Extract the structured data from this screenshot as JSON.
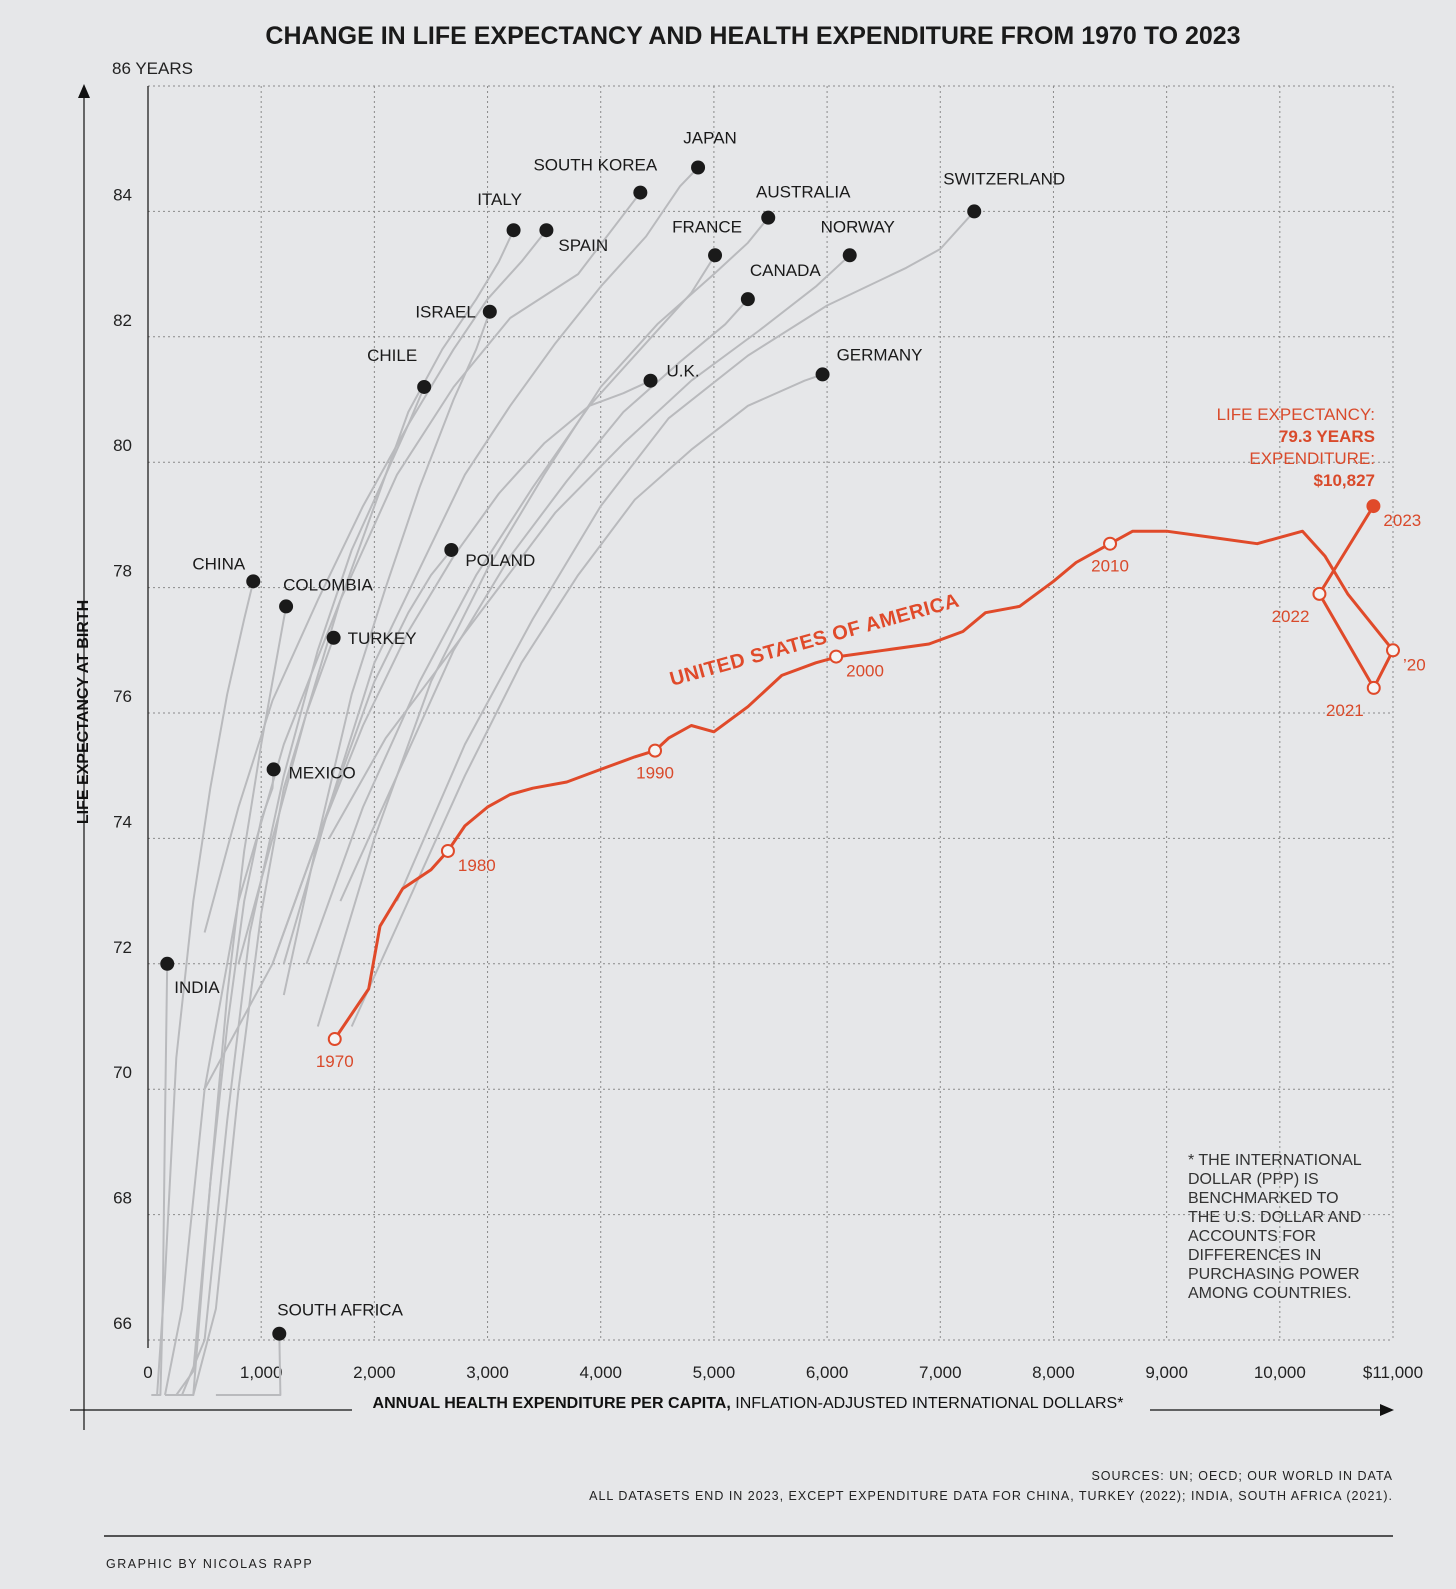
{
  "chart_data": {
    "type": "line",
    "title": "CHANGE IN LIFE EXPECTANCY AND HEALTH EXPENDITURE FROM 1970 TO 2023",
    "xlabel_bold": "ANNUAL HEALTH EXPENDITURE PER CAPITA,",
    "xlabel_rest": " INFLATION-ADJUSTED INTERNATIONAL DOLLARS*",
    "ylabel": "LIFE EXPECTANCY AT BIRTH",
    "xlim": [
      0,
      11000
    ],
    "ylim": [
      66,
      86
    ],
    "grid": true,
    "x_ticks": [
      {
        "value": 0,
        "label": "0"
      },
      {
        "value": 1000,
        "label": "1,000"
      },
      {
        "value": 2000,
        "label": "2,000"
      },
      {
        "value": 3000,
        "label": "3,000"
      },
      {
        "value": 4000,
        "label": "4,000"
      },
      {
        "value": 5000,
        "label": "5,000"
      },
      {
        "value": 6000,
        "label": "6,000"
      },
      {
        "value": 7000,
        "label": "7,000"
      },
      {
        "value": 8000,
        "label": "8,000"
      },
      {
        "value": 9000,
        "label": "9,000"
      },
      {
        "value": 10000,
        "label": "10,000"
      },
      {
        "value": 11000,
        "label": "$11,000"
      }
    ],
    "y_ticks": [
      {
        "value": 66,
        "label": "66"
      },
      {
        "value": 68,
        "label": "68"
      },
      {
        "value": 70,
        "label": "70"
      },
      {
        "value": 72,
        "label": "72"
      },
      {
        "value": 74,
        "label": "74"
      },
      {
        "value": 76,
        "label": "76"
      },
      {
        "value": 78,
        "label": "78"
      },
      {
        "value": 80,
        "label": "80"
      },
      {
        "value": 82,
        "label": "82"
      },
      {
        "value": 84,
        "label": "84"
      },
      {
        "value": 86,
        "label": "86 YEARS"
      }
    ],
    "countries": [
      {
        "name": "JAPAN",
        "x": 4860,
        "y": 84.7,
        "path": [
          [
            1200,
            72.0
          ],
          [
            1600,
            74.5
          ],
          [
            2000,
            76.8
          ],
          [
            2400,
            78.3
          ],
          [
            2800,
            79.8
          ],
          [
            3200,
            80.9
          ],
          [
            3600,
            81.9
          ],
          [
            4000,
            82.8
          ],
          [
            4400,
            83.6
          ],
          [
            4700,
            84.4
          ],
          [
            4860,
            84.7
          ]
        ]
      },
      {
        "name": "SOUTH KOREA",
        "x": 4350,
        "y": 84.3,
        "path": [
          [
            150,
            62.0
          ],
          [
            300,
            66.5
          ],
          [
            500,
            70.0
          ],
          [
            800,
            73.0
          ],
          [
            1200,
            75.5
          ],
          [
            1700,
            77.8
          ],
          [
            2200,
            79.8
          ],
          [
            2700,
            81.2
          ],
          [
            3200,
            82.3
          ],
          [
            3800,
            83.0
          ],
          [
            4350,
            84.3
          ]
        ]
      },
      {
        "name": "AUSTRALIA",
        "x": 5480,
        "y": 83.9,
        "path": [
          [
            1500,
            71.0
          ],
          [
            2000,
            74.0
          ],
          [
            2500,
            76.5
          ],
          [
            3000,
            78.3
          ],
          [
            3500,
            79.8
          ],
          [
            4000,
            81.2
          ],
          [
            4500,
            82.2
          ],
          [
            5000,
            83.0
          ],
          [
            5300,
            83.5
          ],
          [
            5480,
            83.9
          ]
        ]
      },
      {
        "name": "SWITZERLAND",
        "x": 7300,
        "y": 84.0,
        "path": [
          [
            2200,
            73.0
          ],
          [
            2800,
            75.5
          ],
          [
            3400,
            77.5
          ],
          [
            4000,
            79.3
          ],
          [
            4600,
            80.7
          ],
          [
            5300,
            81.7
          ],
          [
            6000,
            82.5
          ],
          [
            6700,
            83.1
          ],
          [
            7000,
            83.4
          ],
          [
            7300,
            84.0
          ]
        ]
      },
      {
        "name": "ITALY",
        "x": 3230,
        "y": 83.7,
        "path": [
          [
            800,
            72.0
          ],
          [
            1100,
            74.0
          ],
          [
            1400,
            76.0
          ],
          [
            1700,
            77.8
          ],
          [
            2000,
            79.3
          ],
          [
            2300,
            80.8
          ],
          [
            2600,
            81.8
          ],
          [
            2900,
            82.6
          ],
          [
            3100,
            83.2
          ],
          [
            3230,
            83.7
          ]
        ]
      },
      {
        "name": "SPAIN",
        "x": 3520,
        "y": 83.7,
        "path": [
          [
            500,
            72.5
          ],
          [
            800,
            74.5
          ],
          [
            1100,
            76.2
          ],
          [
            1500,
            77.8
          ],
          [
            1900,
            79.3
          ],
          [
            2300,
            80.6
          ],
          [
            2700,
            81.8
          ],
          [
            3000,
            82.6
          ],
          [
            3300,
            83.2
          ],
          [
            3520,
            83.7
          ]
        ]
      },
      {
        "name": "FRANCE",
        "x": 5010,
        "y": 83.3,
        "path": [
          [
            1400,
            72.0
          ],
          [
            1900,
            74.5
          ],
          [
            2400,
            76.5
          ],
          [
            2900,
            78.2
          ],
          [
            3400,
            79.6
          ],
          [
            3900,
            80.9
          ],
          [
            4400,
            81.9
          ],
          [
            4800,
            82.7
          ],
          [
            5010,
            83.3
          ]
        ]
      },
      {
        "name": "NORWAY",
        "x": 6200,
        "y": 83.3,
        "path": [
          [
            1600,
            74.0
          ],
          [
            2100,
            75.6
          ],
          [
            2600,
            76.8
          ],
          [
            3100,
            78.0
          ],
          [
            3600,
            79.2
          ],
          [
            4200,
            80.3
          ],
          [
            4800,
            81.3
          ],
          [
            5400,
            82.1
          ],
          [
            5900,
            82.8
          ],
          [
            6200,
            83.3
          ]
        ]
      },
      {
        "name": "CANADA",
        "x": 5300,
        "y": 82.6,
        "path": [
          [
            1700,
            73.0
          ],
          [
            2200,
            75.0
          ],
          [
            2700,
            77.0
          ],
          [
            3200,
            78.5
          ],
          [
            3700,
            79.7
          ],
          [
            4200,
            80.8
          ],
          [
            4700,
            81.6
          ],
          [
            5100,
            82.2
          ],
          [
            5300,
            82.6
          ]
        ]
      },
      {
        "name": "ISRAEL",
        "x": 3020,
        "y": 82.4,
        "path": [
          [
            1200,
            71.5
          ],
          [
            1500,
            74.0
          ],
          [
            1800,
            76.3
          ],
          [
            2100,
            78.0
          ],
          [
            2400,
            79.6
          ],
          [
            2700,
            81.0
          ],
          [
            2900,
            81.8
          ],
          [
            3020,
            82.4
          ]
        ]
      },
      {
        "name": "CHILE",
        "x": 2440,
        "y": 81.2,
        "path": [
          [
            300,
            62.0
          ],
          [
            500,
            66.0
          ],
          [
            700,
            69.5
          ],
          [
            900,
            72.5
          ],
          [
            1200,
            75.0
          ],
          [
            1500,
            77.0
          ],
          [
            1800,
            78.6
          ],
          [
            2100,
            79.8
          ],
          [
            2300,
            80.6
          ],
          [
            2440,
            81.2
          ]
        ]
      },
      {
        "name": "U.K.",
        "x": 4440,
        "y": 81.3,
        "path": [
          [
            1100,
            72.0
          ],
          [
            1500,
            74.0
          ],
          [
            1900,
            75.8
          ],
          [
            2300,
            77.3
          ],
          [
            2700,
            78.5
          ],
          [
            3100,
            79.5
          ],
          [
            3500,
            80.3
          ],
          [
            3900,
            80.9
          ],
          [
            4200,
            81.1
          ],
          [
            4440,
            81.3
          ]
        ]
      },
      {
        "name": "GERMANY",
        "x": 5960,
        "y": 81.4,
        "path": [
          [
            1800,
            71.0
          ],
          [
            2300,
            73.0
          ],
          [
            2800,
            75.0
          ],
          [
            3300,
            76.8
          ],
          [
            3800,
            78.2
          ],
          [
            4300,
            79.4
          ],
          [
            4800,
            80.2
          ],
          [
            5300,
            80.9
          ],
          [
            5800,
            81.3
          ],
          [
            5960,
            81.4
          ]
        ]
      },
      {
        "name": "POLAND",
        "x": 2680,
        "y": 78.6,
        "path": [
          [
            500,
            70.0
          ],
          [
            800,
            71.0
          ],
          [
            1100,
            72.0
          ],
          [
            1400,
            73.5
          ],
          [
            1700,
            75.0
          ],
          [
            2000,
            76.5
          ],
          [
            2300,
            77.6
          ],
          [
            2500,
            78.2
          ],
          [
            2680,
            78.6
          ]
        ]
      },
      {
        "name": "CHINA",
        "x": 930,
        "y": 78.1,
        "path": [
          [
            30,
            59.0
          ],
          [
            80,
            63.0
          ],
          [
            150,
            67.0
          ],
          [
            250,
            70.5
          ],
          [
            400,
            73.0
          ],
          [
            550,
            74.8
          ],
          [
            700,
            76.3
          ],
          [
            850,
            77.5
          ],
          [
            930,
            78.1
          ]
        ]
      },
      {
        "name": "COLOMBIA",
        "x": 1220,
        "y": 77.7,
        "path": [
          [
            250,
            61.0
          ],
          [
            400,
            65.0
          ],
          [
            550,
            68.5
          ],
          [
            700,
            71.5
          ],
          [
            850,
            73.8
          ],
          [
            1000,
            75.5
          ],
          [
            1100,
            76.5
          ],
          [
            1220,
            77.7
          ]
        ]
      },
      {
        "name": "TURKEY",
        "x": 1640,
        "y": 77.2,
        "path": [
          [
            150,
            52.0
          ],
          [
            250,
            57.0
          ],
          [
            400,
            62.0
          ],
          [
            600,
            66.5
          ],
          [
            800,
            70.0
          ],
          [
            1000,
            72.8
          ],
          [
            1200,
            74.8
          ],
          [
            1400,
            76.0
          ],
          [
            1640,
            77.2
          ]
        ]
      },
      {
        "name": "MEXICO",
        "x": 1110,
        "y": 75.1,
        "path": [
          [
            250,
            62.0
          ],
          [
            400,
            65.5
          ],
          [
            550,
            68.5
          ],
          [
            700,
            71.0
          ],
          [
            850,
            73.0
          ],
          [
            1000,
            74.3
          ],
          [
            1100,
            74.8
          ],
          [
            1110,
            75.1
          ]
        ]
      },
      {
        "name": "INDIA",
        "x": 170,
        "y": 72.0,
        "path": [
          [
            30,
            48.0
          ],
          [
            50,
            52.0
          ],
          [
            70,
            56.0
          ],
          [
            90,
            60.0
          ],
          [
            110,
            63.5
          ],
          [
            130,
            66.5
          ],
          [
            150,
            69.5
          ],
          [
            170,
            72.0
          ]
        ]
      },
      {
        "name": "SOUTH AFRICA",
        "x": 1160,
        "y": 66.1,
        "path": [
          [
            600,
            55.0
          ],
          [
            800,
            57.5
          ],
          [
            1000,
            60.5
          ],
          [
            1100,
            62.0
          ],
          [
            1150,
            63.5
          ],
          [
            1170,
            65.0
          ],
          [
            1160,
            66.1
          ]
        ]
      }
    ],
    "usa": {
      "name": "UNITED STATES OF AMERICA",
      "series": [
        [
          1650,
          70.8
        ],
        [
          1800,
          71.2
        ],
        [
          1950,
          71.6
        ],
        [
          2050,
          72.6
        ],
        [
          2250,
          73.2
        ],
        [
          2500,
          73.5
        ],
        [
          2650,
          73.8
        ],
        [
          2800,
          74.2
        ],
        [
          3000,
          74.5
        ],
        [
          3200,
          74.7
        ],
        [
          3400,
          74.8
        ],
        [
          3700,
          74.9
        ],
        [
          4000,
          75.1
        ],
        [
          4300,
          75.3
        ],
        [
          4480,
          75.4
        ],
        [
          4600,
          75.6
        ],
        [
          4800,
          75.8
        ],
        [
          5000,
          75.7
        ],
        [
          5300,
          76.1
        ],
        [
          5600,
          76.6
        ],
        [
          5900,
          76.8
        ],
        [
          6100,
          76.9
        ],
        [
          6500,
          77.0
        ],
        [
          6900,
          77.1
        ],
        [
          7200,
          77.3
        ],
        [
          7400,
          77.6
        ],
        [
          7700,
          77.7
        ],
        [
          8000,
          78.1
        ],
        [
          8200,
          78.4
        ],
        [
          8500,
          78.7
        ],
        [
          8700,
          78.9
        ],
        [
          9000,
          78.9
        ],
        [
          9400,
          78.8
        ],
        [
          9800,
          78.7
        ],
        [
          10000,
          78.8
        ],
        [
          10200,
          78.9
        ],
        [
          10400,
          78.5
        ],
        [
          10600,
          77.9
        ],
        [
          11000,
          77.0
        ],
        [
          10830,
          76.4
        ],
        [
          10350,
          77.9
        ],
        [
          10827,
          79.3
        ]
      ],
      "markers": [
        {
          "year": "1970",
          "x": 1650,
          "y": 70.8,
          "pos": "below"
        },
        {
          "year": "1980",
          "x": 2650,
          "y": 73.8,
          "pos": "right-below"
        },
        {
          "year": "1990",
          "x": 4480,
          "y": 75.4,
          "pos": "below"
        },
        {
          "year": "2000",
          "x": 6080,
          "y": 76.9,
          "pos": "right-below"
        },
        {
          "year": "2010",
          "x": 8500,
          "y": 78.7,
          "pos": "below"
        },
        {
          "year": "’20",
          "x": 11000,
          "y": 77.0,
          "pos": "right-below"
        },
        {
          "year": "2021",
          "x": 10830,
          "y": 76.4,
          "pos": "left-below"
        },
        {
          "year": "2022",
          "x": 10350,
          "y": 77.9,
          "pos": "left-below"
        },
        {
          "year": "2023",
          "x": 10827,
          "y": 79.3,
          "pos": "right-below",
          "filled": true
        }
      ],
      "annotation": {
        "line1": "LIFE EXPECTANCY:",
        "line2": "79.3 YEARS",
        "line3": "EXPENDITURE:",
        "line4": "$10,827"
      }
    },
    "footnote": [
      "* THE INTERNATIONAL",
      "DOLLAR (PPP) IS",
      "BENCHMARKED TO",
      "THE U.S. DOLLAR AND",
      "ACCOUNTS FOR",
      "DIFFERENCES IN",
      "PURCHASING POWER",
      "AMONG COUNTRIES."
    ],
    "sources": "SOURCES: UN; OECD; OUR WORLD IN DATA",
    "datasets_note": "ALL DATASETS END IN 2023, EXCEPT EXPENDITURE DATA FOR CHINA, TURKEY (2022); INDIA, SOUTH AFRICA (2021).",
    "credit": "GRAPHIC BY NICOLAS RAPP",
    "colors": {
      "background": "#e6e7e9",
      "usa": "#e04a2a",
      "country_line": "#b9babd",
      "dot": "#1a1a1a",
      "grid": "#8a8a8a"
    }
  }
}
